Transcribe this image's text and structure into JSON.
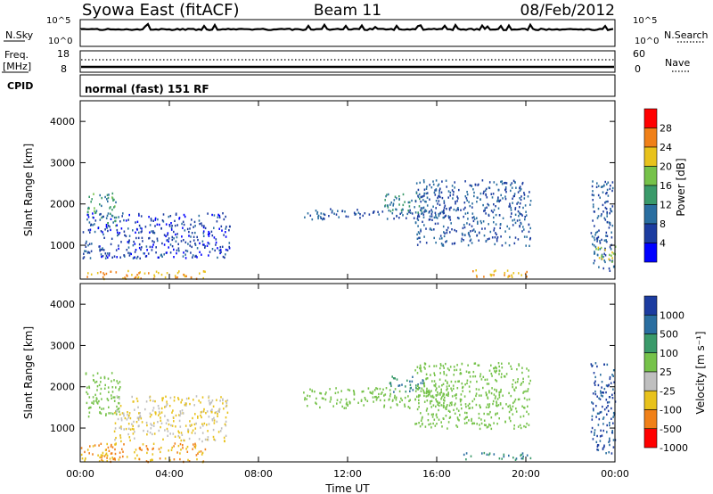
{
  "header": {
    "station": "Syowa East (fitACF)",
    "beam": "Beam 11",
    "date": "08/Feb/2012"
  },
  "noise_panel": {
    "left_label": "N.Sky",
    "right_label": "N.Search",
    "left_ticks": [
      "10^5",
      "10^0"
    ],
    "right_ticks": [
      "10^5",
      "10^0"
    ]
  },
  "freq_panel": {
    "left_label_1": "Freq.",
    "left_label_2": "[MHz]",
    "right_label": "Nave",
    "left_ticks": [
      "18",
      "8"
    ],
    "right_ticks": [
      "60",
      "0"
    ]
  },
  "cpid_panel": {
    "label": "CPID",
    "mode_text": "normal (fast) 151 RF"
  },
  "colors": {
    "power_scale": [
      "#0000ff",
      "#1c3ca0",
      "#2a6ea0",
      "#3a9a6a",
      "#76c24a",
      "#e8c21c",
      "#f08018",
      "#ff0000"
    ],
    "velocity_scale": [
      "#1c3ca0",
      "#2a6ea0",
      "#3a9a6a",
      "#76c24a",
      "#bfbfbf",
      "#e8c21c",
      "#f08018",
      "#ff0000"
    ]
  },
  "chart_data": [
    {
      "type": "heatmap",
      "name": "power",
      "ylabel": "Slant Range [km]",
      "ylim": [
        180,
        4500
      ],
      "y_ticks": [
        "1000",
        "2000",
        "3000",
        "4000"
      ],
      "x_ticks": [
        "00:00",
        "04:00",
        "08:00",
        "12:00",
        "16:00",
        "20:00",
        "00:00"
      ],
      "colorbar_label": "Power [dB]",
      "colorbar_ticks": [
        "4",
        "8",
        "12",
        "16",
        "20",
        "24",
        "28"
      ],
      "regions": [
        {
          "t0": 0.0,
          "t1": 5.6,
          "r0": 200,
          "r1": 400,
          "value": 24
        },
        {
          "t0": 0.3,
          "t1": 1.6,
          "r0": 1500,
          "r1": 2300,
          "value": 14
        },
        {
          "t0": 0.1,
          "t1": 6.7,
          "r0": 700,
          "r1": 1800,
          "value": 6
        },
        {
          "t0": 10.0,
          "t1": 16.6,
          "r0": 1650,
          "r1": 1900,
          "value": 8
        },
        {
          "t0": 13.5,
          "t1": 15.5,
          "r0": 1800,
          "r1": 2300,
          "value": 12
        },
        {
          "t0": 15.0,
          "t1": 20.2,
          "r0": 1000,
          "r1": 2600,
          "value": 8
        },
        {
          "t0": 17.1,
          "t1": 20.2,
          "r0": 250,
          "r1": 420,
          "value": 24
        },
        {
          "t0": 22.9,
          "t1": 24.0,
          "r0": 400,
          "r1": 2600,
          "value": 8
        },
        {
          "t0": 23.1,
          "t1": 24.0,
          "r0": 600,
          "r1": 1000,
          "value": 20
        }
      ]
    },
    {
      "type": "heatmap",
      "name": "velocity",
      "ylabel": "Slant Range [km]",
      "xlabel": "Time UT",
      "ylim": [
        180,
        4500
      ],
      "y_ticks": [
        "1000",
        "2000",
        "3000",
        "4000"
      ],
      "x_ticks": [
        "00:00",
        "04:00",
        "08:00",
        "12:00",
        "16:00",
        "20:00",
        "00:00"
      ],
      "colorbar_label": "Velocity [m s⁻¹]",
      "colorbar_ticks": [
        "1000",
        "500",
        "100",
        "25",
        "-25",
        "-100",
        "-500",
        "-1000"
      ],
      "regions": [
        {
          "t0": 0.0,
          "t1": 5.6,
          "r0": 200,
          "r1": 650,
          "value": -500
        },
        {
          "t0": 0.2,
          "t1": 1.8,
          "r0": 1300,
          "r1": 2400,
          "value": 0
        },
        {
          "t0": 1.5,
          "t1": 6.6,
          "r0": 700,
          "r1": 1800,
          "value": -100
        },
        {
          "t0": 10.0,
          "t1": 16.6,
          "r0": 1500,
          "r1": 2000,
          "value": 0
        },
        {
          "t0": 13.8,
          "t1": 15.4,
          "r0": 1900,
          "r1": 2300,
          "value": 100
        },
        {
          "t0": 15.0,
          "t1": 20.2,
          "r0": 1000,
          "r1": 2600,
          "value": 0
        },
        {
          "t0": 17.1,
          "t1": 20.2,
          "r0": 250,
          "r1": 420,
          "value": 100
        },
        {
          "t0": 22.9,
          "t1": 24.0,
          "r0": 400,
          "r1": 2600,
          "value": 500
        }
      ]
    }
  ]
}
